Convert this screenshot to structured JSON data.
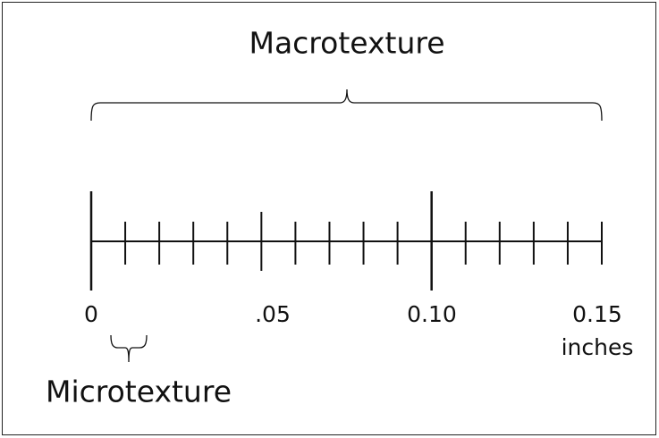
{
  "title": "Macrotexture",
  "scale": {
    "labels": [
      "0",
      ".05",
      "0.10",
      "0.15"
    ],
    "unit": "inches"
  },
  "sub_label": "Microtexture"
}
